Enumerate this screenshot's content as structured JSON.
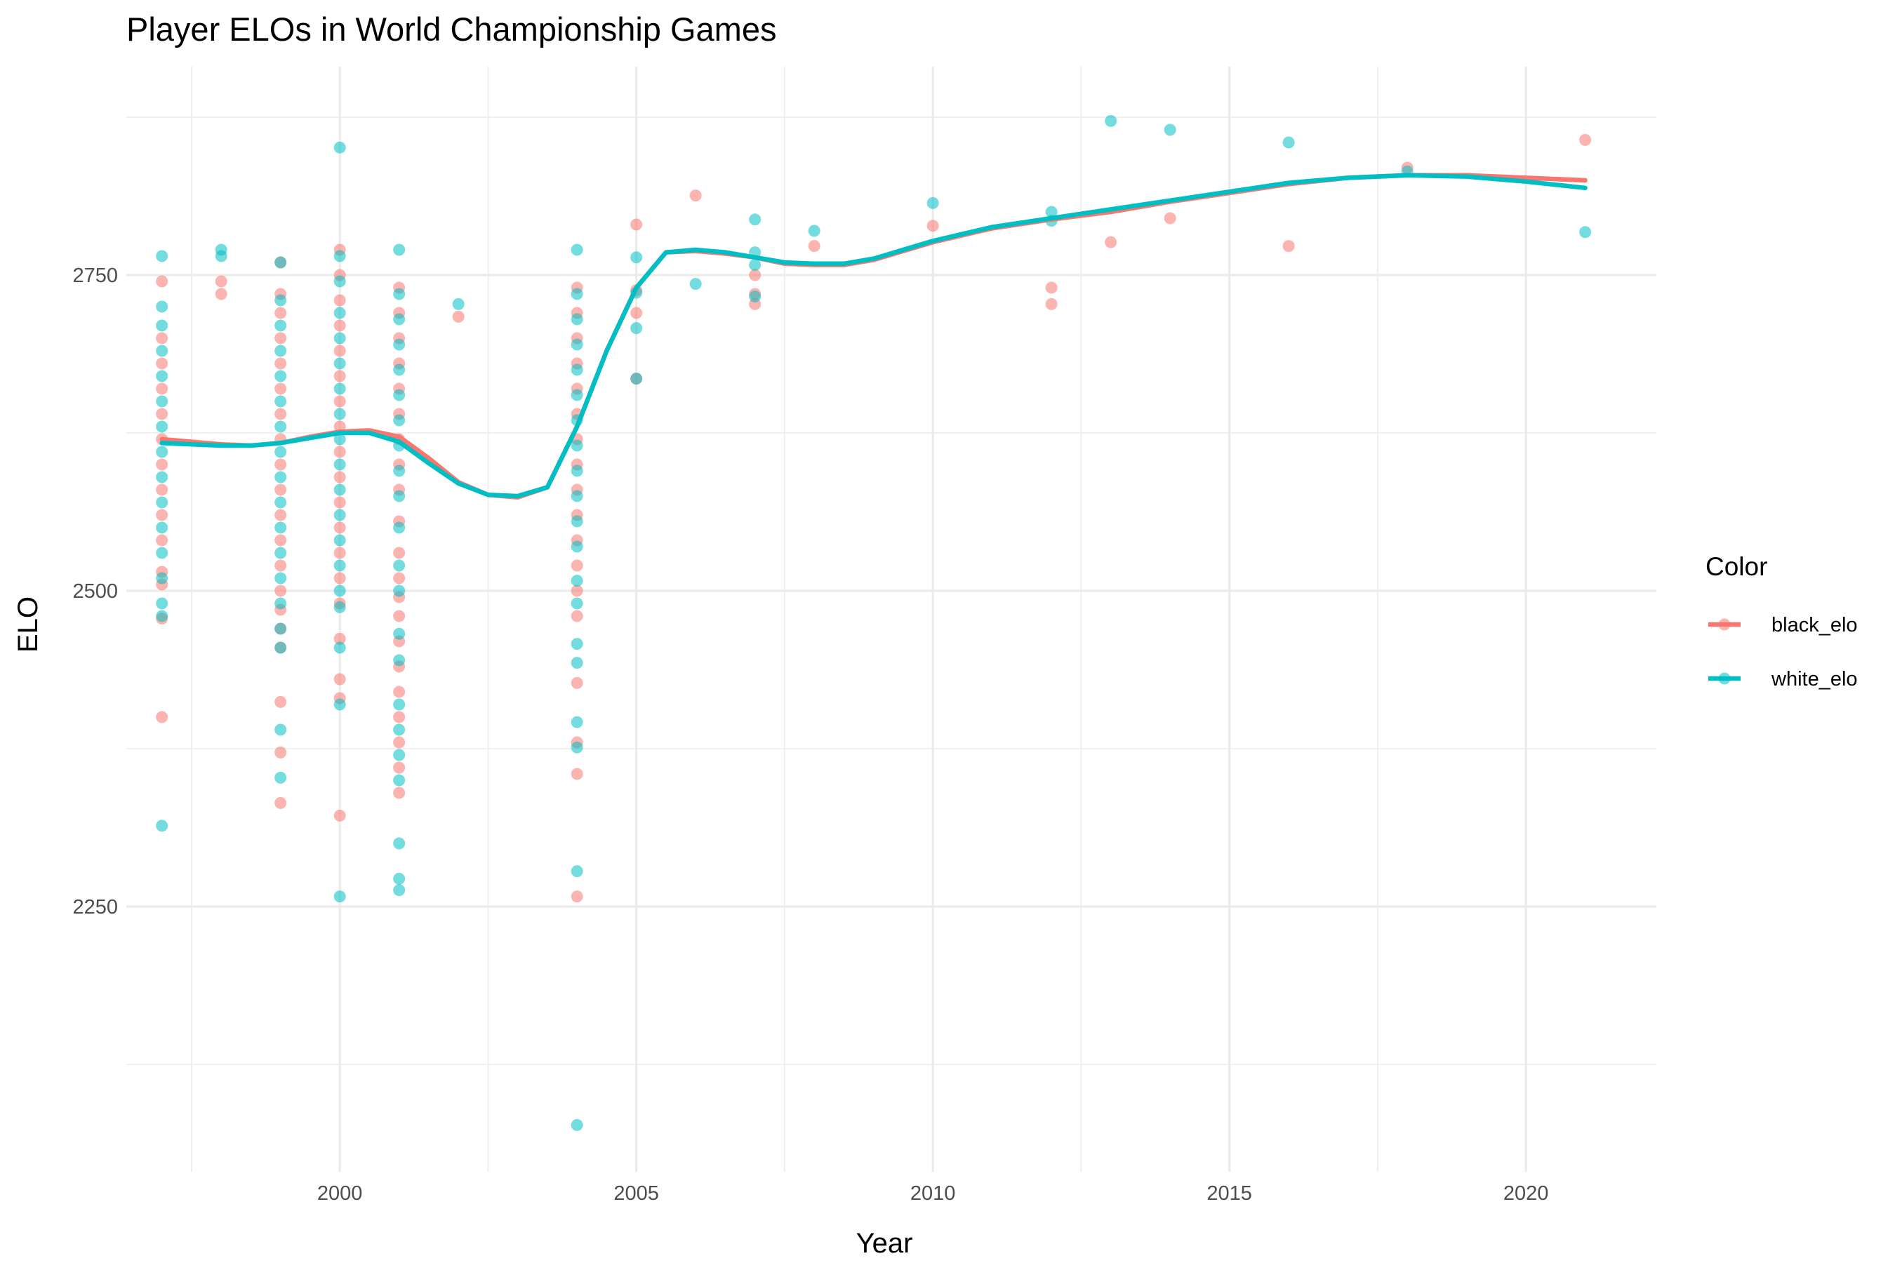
{
  "chart_data": {
    "type": "scatter",
    "title": "Player ELOs in World Championship Games",
    "xlabel": "Year",
    "ylabel": "ELO",
    "xlim": [
      1996.4,
      2022.2
    ],
    "ylim": [
      2040,
      2915
    ],
    "x_ticks": [
      2000,
      2005,
      2010,
      2015,
      2020
    ],
    "y_ticks": [
      2250,
      2500,
      2750
    ],
    "x_tick_labels": [
      "2000",
      "2005",
      "2010",
      "2015",
      "2020"
    ],
    "y_tick_labels": [
      "2250",
      "2500",
      "2750"
    ],
    "grid": true,
    "legend": {
      "title": "Color",
      "position": "right",
      "entries": [
        "black_elo",
        "white_elo"
      ]
    },
    "series": [
      {
        "name": "black_elo",
        "color": "#F8766D",
        "points": [
          [
            1997,
            2745
          ],
          [
            1997,
            2700
          ],
          [
            1997,
            2680
          ],
          [
            1997,
            2660
          ],
          [
            1997,
            2640
          ],
          [
            1997,
            2620
          ],
          [
            1997,
            2600
          ],
          [
            1997,
            2580
          ],
          [
            1997,
            2560
          ],
          [
            1997,
            2540
          ],
          [
            1997,
            2515
          ],
          [
            1997,
            2505
          ],
          [
            1997,
            2478
          ],
          [
            1997,
            2400
          ],
          [
            1998,
            2745
          ],
          [
            1998,
            2735
          ],
          [
            1999,
            2760
          ],
          [
            1999,
            2735
          ],
          [
            1999,
            2720
          ],
          [
            1999,
            2700
          ],
          [
            1999,
            2680
          ],
          [
            1999,
            2660
          ],
          [
            1999,
            2640
          ],
          [
            1999,
            2620
          ],
          [
            1999,
            2600
          ],
          [
            1999,
            2580
          ],
          [
            1999,
            2560
          ],
          [
            1999,
            2540
          ],
          [
            1999,
            2520
          ],
          [
            1999,
            2500
          ],
          [
            1999,
            2485
          ],
          [
            1999,
            2470
          ],
          [
            1999,
            2455
          ],
          [
            1999,
            2412
          ],
          [
            1999,
            2372
          ],
          [
            1999,
            2332
          ],
          [
            2000,
            2770
          ],
          [
            2000,
            2750
          ],
          [
            2000,
            2730
          ],
          [
            2000,
            2710
          ],
          [
            2000,
            2690
          ],
          [
            2000,
            2670
          ],
          [
            2000,
            2650
          ],
          [
            2000,
            2630
          ],
          [
            2000,
            2610
          ],
          [
            2000,
            2590
          ],
          [
            2000,
            2570
          ],
          [
            2000,
            2550
          ],
          [
            2000,
            2530
          ],
          [
            2000,
            2510
          ],
          [
            2000,
            2490
          ],
          [
            2000,
            2462
          ],
          [
            2000,
            2430
          ],
          [
            2000,
            2415
          ],
          [
            2000,
            2322
          ],
          [
            2001,
            2740
          ],
          [
            2001,
            2720
          ],
          [
            2001,
            2700
          ],
          [
            2001,
            2680
          ],
          [
            2001,
            2660
          ],
          [
            2001,
            2640
          ],
          [
            2001,
            2620
          ],
          [
            2001,
            2600
          ],
          [
            2001,
            2580
          ],
          [
            2001,
            2555
          ],
          [
            2001,
            2530
          ],
          [
            2001,
            2510
          ],
          [
            2001,
            2495
          ],
          [
            2001,
            2480
          ],
          [
            2001,
            2460
          ],
          [
            2001,
            2440
          ],
          [
            2001,
            2420
          ],
          [
            2001,
            2400
          ],
          [
            2001,
            2380
          ],
          [
            2001,
            2360
          ],
          [
            2001,
            2340
          ],
          [
            2002,
            2717
          ],
          [
            2004,
            2740
          ],
          [
            2004,
            2720
          ],
          [
            2004,
            2700
          ],
          [
            2004,
            2680
          ],
          [
            2004,
            2660
          ],
          [
            2004,
            2640
          ],
          [
            2004,
            2620
          ],
          [
            2004,
            2600
          ],
          [
            2004,
            2580
          ],
          [
            2004,
            2560
          ],
          [
            2004,
            2540
          ],
          [
            2004,
            2520
          ],
          [
            2004,
            2500
          ],
          [
            2004,
            2480
          ],
          [
            2004,
            2427
          ],
          [
            2004,
            2380
          ],
          [
            2004,
            2355
          ],
          [
            2004,
            2258
          ],
          [
            2005,
            2790
          ],
          [
            2005,
            2738
          ],
          [
            2005,
            2720
          ],
          [
            2005,
            2668
          ],
          [
            2006,
            2813
          ],
          [
            2007,
            2750
          ],
          [
            2007,
            2735
          ],
          [
            2007,
            2727
          ],
          [
            2008,
            2773
          ],
          [
            2010,
            2789
          ],
          [
            2012,
            2740
          ],
          [
            2012,
            2727
          ],
          [
            2013,
            2776
          ],
          [
            2014,
            2795
          ],
          [
            2016,
            2773
          ],
          [
            2018,
            2835
          ],
          [
            2021,
            2857
          ]
        ]
      },
      {
        "name": "white_elo",
        "color": "#00BFC4",
        "points": [
          [
            1997,
            2765
          ],
          [
            1997,
            2725
          ],
          [
            1997,
            2710
          ],
          [
            1997,
            2690
          ],
          [
            1997,
            2670
          ],
          [
            1997,
            2650
          ],
          [
            1997,
            2630
          ],
          [
            1997,
            2610
          ],
          [
            1997,
            2590
          ],
          [
            1997,
            2570
          ],
          [
            1997,
            2550
          ],
          [
            1997,
            2530
          ],
          [
            1997,
            2510
          ],
          [
            1997,
            2490
          ],
          [
            1997,
            2480
          ],
          [
            1997,
            2314
          ],
          [
            1998,
            2770
          ],
          [
            1998,
            2765
          ],
          [
            1999,
            2760
          ],
          [
            1999,
            2730
          ],
          [
            1999,
            2710
          ],
          [
            1999,
            2690
          ],
          [
            1999,
            2670
          ],
          [
            1999,
            2650
          ],
          [
            1999,
            2630
          ],
          [
            1999,
            2610
          ],
          [
            1999,
            2590
          ],
          [
            1999,
            2570
          ],
          [
            1999,
            2550
          ],
          [
            1999,
            2530
          ],
          [
            1999,
            2510
          ],
          [
            1999,
            2490
          ],
          [
            1999,
            2470
          ],
          [
            1999,
            2455
          ],
          [
            1999,
            2390
          ],
          [
            1999,
            2352
          ],
          [
            2000,
            2851
          ],
          [
            2000,
            2765
          ],
          [
            2000,
            2745
          ],
          [
            2000,
            2720
          ],
          [
            2000,
            2700
          ],
          [
            2000,
            2680
          ],
          [
            2000,
            2660
          ],
          [
            2000,
            2640
          ],
          [
            2000,
            2620
          ],
          [
            2000,
            2600
          ],
          [
            2000,
            2580
          ],
          [
            2000,
            2560
          ],
          [
            2000,
            2540
          ],
          [
            2000,
            2520
          ],
          [
            2000,
            2500
          ],
          [
            2000,
            2487
          ],
          [
            2000,
            2455
          ],
          [
            2000,
            2410
          ],
          [
            2000,
            2258
          ],
          [
            2001,
            2770
          ],
          [
            2001,
            2735
          ],
          [
            2001,
            2715
          ],
          [
            2001,
            2695
          ],
          [
            2001,
            2675
          ],
          [
            2001,
            2655
          ],
          [
            2001,
            2635
          ],
          [
            2001,
            2615
          ],
          [
            2001,
            2595
          ],
          [
            2001,
            2575
          ],
          [
            2001,
            2550
          ],
          [
            2001,
            2520
          ],
          [
            2001,
            2500
          ],
          [
            2001,
            2466
          ],
          [
            2001,
            2445
          ],
          [
            2001,
            2410
          ],
          [
            2001,
            2390
          ],
          [
            2001,
            2370
          ],
          [
            2001,
            2350
          ],
          [
            2001,
            2300
          ],
          [
            2001,
            2272
          ],
          [
            2001,
            2263
          ],
          [
            2002,
            2727
          ],
          [
            2004,
            2770
          ],
          [
            2004,
            2735
          ],
          [
            2004,
            2715
          ],
          [
            2004,
            2695
          ],
          [
            2004,
            2675
          ],
          [
            2004,
            2655
          ],
          [
            2004,
            2635
          ],
          [
            2004,
            2615
          ],
          [
            2004,
            2595
          ],
          [
            2004,
            2575
          ],
          [
            2004,
            2555
          ],
          [
            2004,
            2535
          ],
          [
            2004,
            2508
          ],
          [
            2004,
            2490
          ],
          [
            2004,
            2458
          ],
          [
            2004,
            2443
          ],
          [
            2004,
            2396
          ],
          [
            2004,
            2376
          ],
          [
            2004,
            2278
          ],
          [
            2004,
            2077
          ],
          [
            2005,
            2764
          ],
          [
            2005,
            2736
          ],
          [
            2005,
            2708
          ],
          [
            2005,
            2668
          ],
          [
            2006,
            2743
          ],
          [
            2007,
            2794
          ],
          [
            2007,
            2768
          ],
          [
            2007,
            2758
          ],
          [
            2007,
            2733
          ],
          [
            2008,
            2785
          ],
          [
            2010,
            2807
          ],
          [
            2012,
            2800
          ],
          [
            2012,
            2793
          ],
          [
            2013,
            2872
          ],
          [
            2014,
            2865
          ],
          [
            2016,
            2855
          ],
          [
            2018,
            2832
          ],
          [
            2021,
            2784
          ]
        ]
      }
    ],
    "smooth": [
      {
        "name": "black_elo",
        "color": "#F8766D",
        "x": [
          1997,
          1997.5,
          1998,
          1998.5,
          1999,
          1999.5,
          2000,
          2000.5,
          2001,
          2001.5,
          2002,
          2002.5,
          2003,
          2003.5,
          2004,
          2004.5,
          2005,
          2005.5,
          2006,
          2006.5,
          2007,
          2007.5,
          2008,
          2008.5,
          2009,
          2010,
          2011,
          2012,
          2013,
          2014,
          2015,
          2016,
          2017,
          2018,
          2019,
          2020,
          2021
        ],
        "y": [
          2620,
          2618,
          2616,
          2615,
          2617,
          2622,
          2626,
          2627,
          2622,
          2605,
          2586,
          2576,
          2574,
          2582,
          2630,
          2690,
          2740,
          2768,
          2769,
          2767,
          2764,
          2759,
          2758,
          2758,
          2762,
          2776,
          2787,
          2794,
          2800,
          2808,
          2815,
          2822,
          2827,
          2829,
          2829,
          2827,
          2825
        ]
      },
      {
        "name": "white_elo",
        "color": "#00BFC4",
        "x": [
          1997,
          1997.5,
          1998,
          1998.5,
          1999,
          1999.5,
          2000,
          2000.5,
          2001,
          2001.5,
          2002,
          2002.5,
          2003,
          2003.5,
          2004,
          2004.5,
          2005,
          2005.5,
          2006,
          2006.5,
          2007,
          2007.5,
          2008,
          2008.5,
          2009,
          2010,
          2011,
          2012,
          2013,
          2014,
          2015,
          2016,
          2017,
          2018,
          2019,
          2020,
          2021
        ],
        "y": [
          2617,
          2616,
          2615,
          2615,
          2617,
          2621,
          2625,
          2625,
          2618,
          2601,
          2585,
          2576,
          2575,
          2582,
          2630,
          2690,
          2740,
          2768,
          2770,
          2768,
          2764,
          2760,
          2759,
          2759,
          2763,
          2777,
          2788,
          2795,
          2802,
          2809,
          2816,
          2823,
          2827,
          2829,
          2828,
          2824,
          2819
        ]
      }
    ]
  }
}
